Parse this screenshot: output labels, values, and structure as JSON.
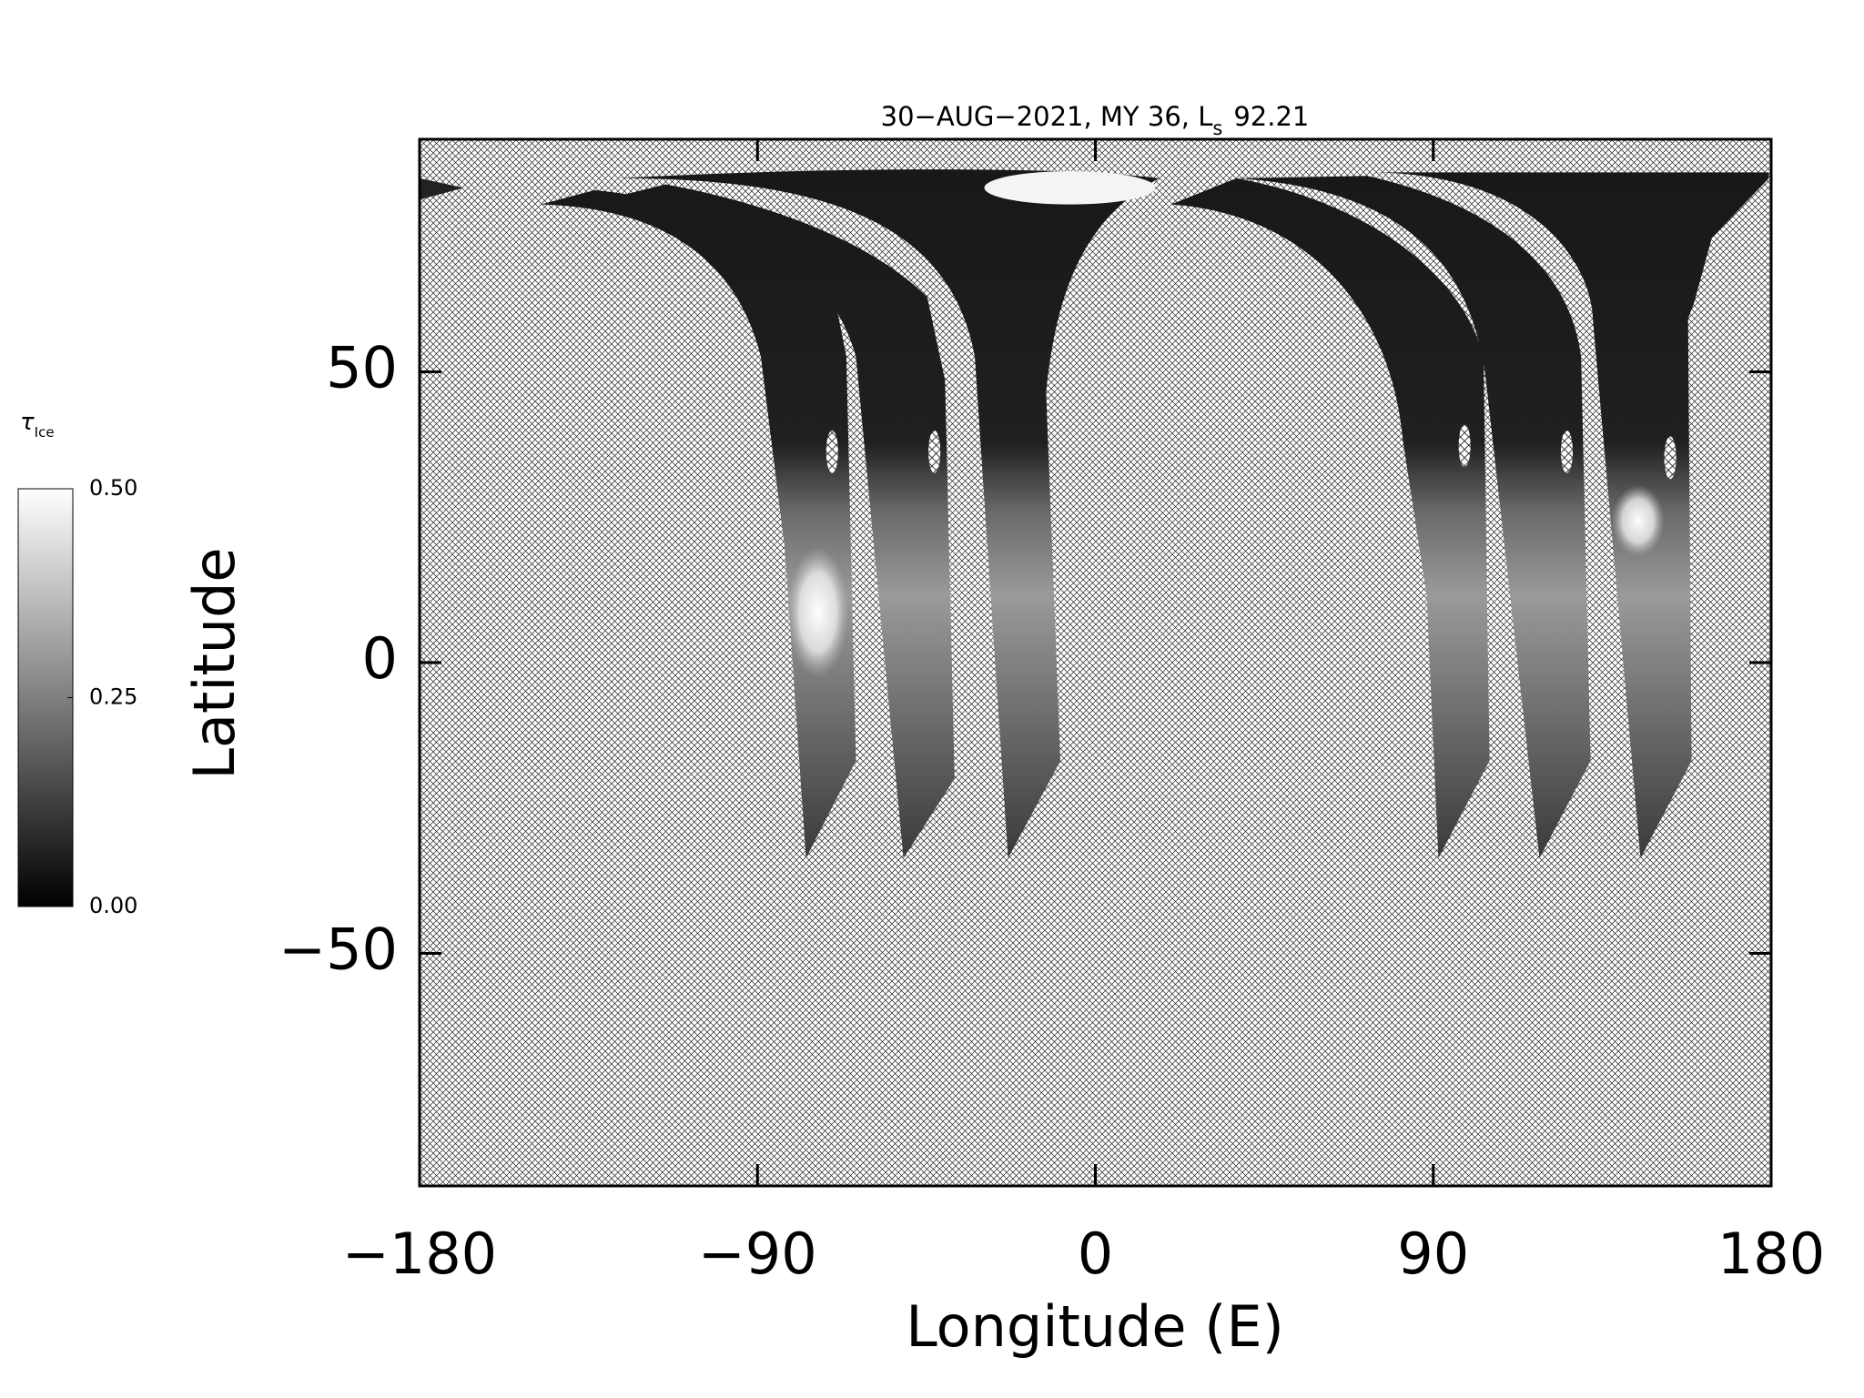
{
  "chart_data": {
    "type": "map",
    "title": {
      "text": "30−AUG−2021, MY 36,  L",
      "subscript": "s",
      "suffix": "92.21"
    },
    "x_label": "Longitude (E)",
    "y_label": "Latitude",
    "xlim": [
      -180,
      180
    ],
    "ylim": [
      -90,
      90
    ],
    "xticks": [
      {
        "value": -180,
        "label": "−180"
      },
      {
        "value": -90,
        "label": "−90"
      },
      0,
      90,
      180
    ],
    "yticks": [
      {
        "value": -50,
        "label": "−50"
      },
      0,
      50
    ],
    "colorbar": {
      "label": "τ",
      "label_subscript": "Ice",
      "lim": [
        0,
        0.5
      ],
      "ticks": [
        {
          "value": 0,
          "label": "0.00"
        },
        {
          "value": 0.25,
          "label": "0.25"
        },
        {
          "value": 0.5,
          "label": "0.50"
        }
      ],
      "colors": [
        "#000000",
        "#ffffff"
      ]
    }
  }
}
